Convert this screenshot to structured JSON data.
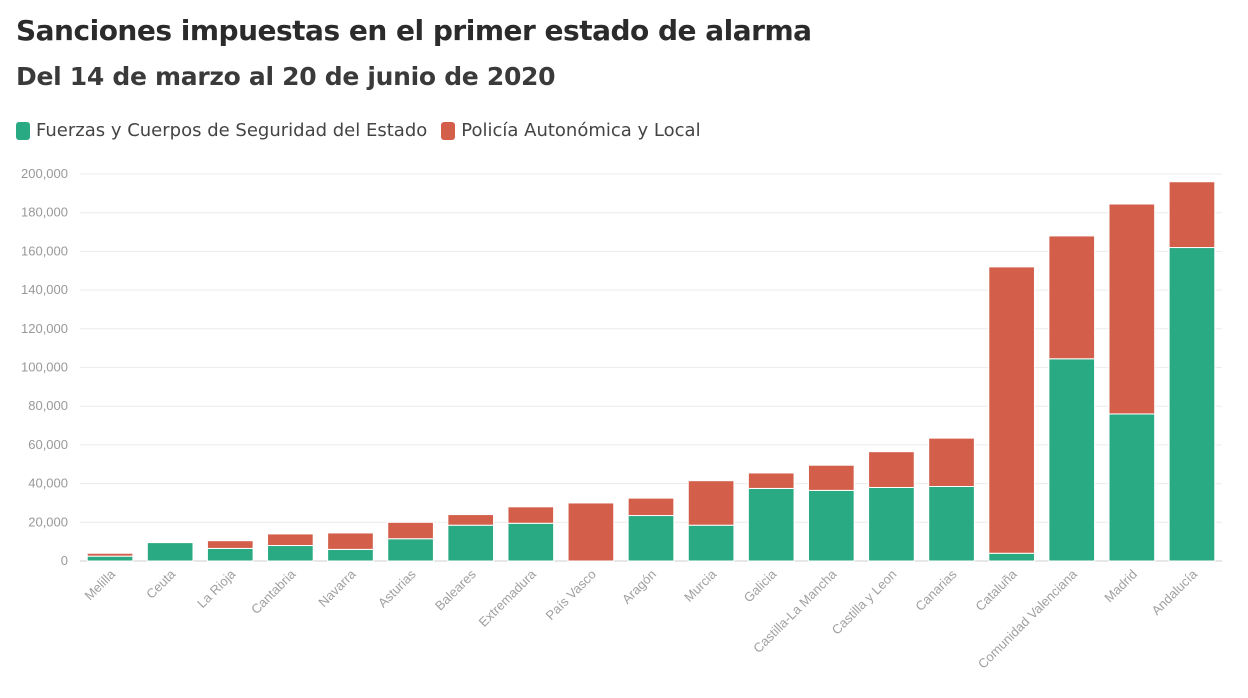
{
  "header": {
    "title": "Sanciones impuestas en el primer estado de alarma",
    "subtitle": "Del 14 de marzo al 20 de junio de 2020"
  },
  "legend": [
    {
      "label": "Fuerzas y Cuerpos de Seguridad del Estado",
      "color": "#2aaa82"
    },
    {
      "label": "Policía Autonómica y Local",
      "color": "#d35f4b"
    }
  ],
  "chart_data": {
    "type": "bar",
    "stacked": true,
    "title": "Sanciones impuestas en el primer estado de alarma",
    "subtitle": "Del 14 de marzo al 20 de junio de 2020",
    "xlabel": "",
    "ylabel": "",
    "ylim": [
      0,
      200000
    ],
    "yticks": [
      0,
      20000,
      40000,
      60000,
      80000,
      100000,
      120000,
      140000,
      160000,
      180000,
      200000
    ],
    "ytick_labels": [
      "0",
      "20,000",
      "40,000",
      "60,000",
      "80,000",
      "100,000",
      "120,000",
      "140,000",
      "160,000",
      "180,000",
      "200,000"
    ],
    "grid": true,
    "legend_position": "top-left",
    "categories": [
      "Melilla",
      "Ceuta",
      "La Rioja",
      "Cantabria",
      "Navarra",
      "Asturias",
      "Baleares",
      "Extremadura",
      "País Vasco",
      "Aragón",
      "Murcia",
      "Galicia",
      "Castilla-La Mancha",
      "Castilla y Leon",
      "Canarias",
      "Cataluña",
      "Comunidad Valenciana",
      "Madrid",
      "Andalucía"
    ],
    "series": [
      {
        "name": "Fuerzas y Cuerpos de Seguridad del Estado",
        "color": "#2aaa82",
        "values": [
          2500,
          9500,
          6500,
          8000,
          6000,
          11500,
          18500,
          19500,
          0,
          23500,
          18500,
          37500,
          36500,
          38000,
          38500,
          4000,
          104500,
          76000,
          162000
        ]
      },
      {
        "name": "Policía Autonómica y Local",
        "color": "#d35f4b",
        "values": [
          1500,
          0,
          4000,
          6000,
          8500,
          8500,
          5500,
          8500,
          30000,
          9000,
          23000,
          8000,
          13000,
          18500,
          25000,
          148000,
          63500,
          108500,
          34000
        ]
      }
    ]
  }
}
